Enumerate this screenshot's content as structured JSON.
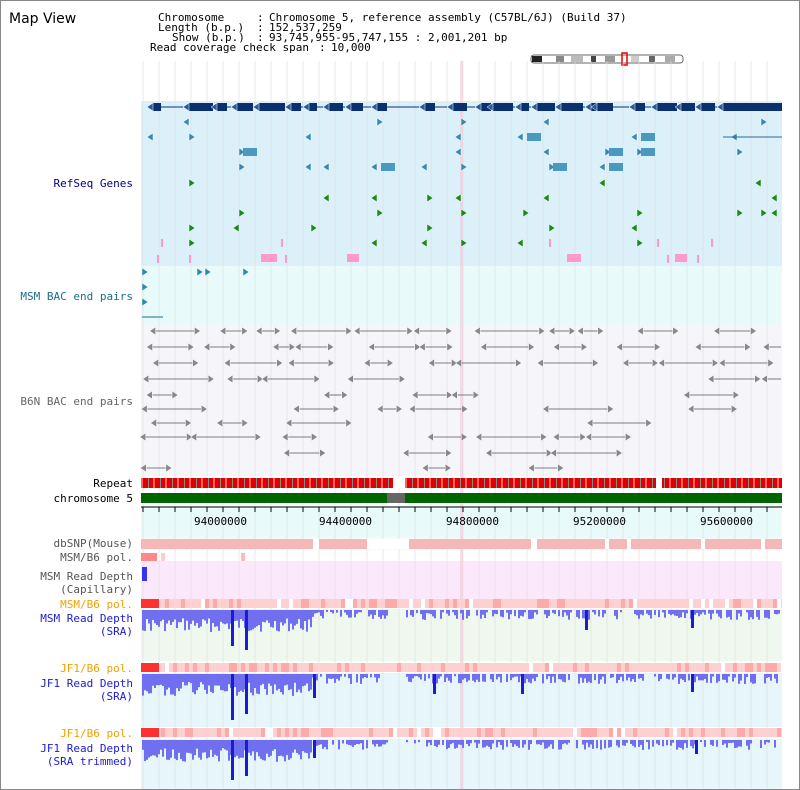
{
  "header": {
    "title": "Map View",
    "chromosome_key": "Chromosome",
    "chromosome_val": "Chromosome 5, reference assembly (C57BL/6J) (Build 37)",
    "length_key": "Length (b.p.)",
    "length_val": "152,537,259",
    "show_key": "Show (b.p.)",
    "show_val": "93,745,955-95,747,155 : 2,001,201 bp",
    "span_key": "Read coverage check span",
    "span_val": "10,000"
  },
  "tracks": {
    "refseq": "RefSeq Genes",
    "msm_bac": "MSM BAC end pairs",
    "b6n_bac": "B6N BAC end pairs",
    "repeat": "Repeat",
    "chromosome": "chromosome 5",
    "dbsnp": "dbSNP(Mouse)",
    "msm_b6_pol_1": "MSM/B6 pol.",
    "msm_depth_cap_1": "MSM Read Depth",
    "msm_depth_cap_2": "(Capillary)",
    "msm_b6_pol_2": "MSM/B6 pol.",
    "msm_depth_sra_1": "MSM Read Depth",
    "msm_depth_sra_2": "(SRA)",
    "jf1_b6_pol_1": "JF1/B6 pol.",
    "jf1_depth_sra_1": "JF1 Read Depth",
    "jf1_depth_sra_2": "(SRA)",
    "jf1_b6_pol_2": "JF1/B6 pol.",
    "jf1_depth_trim_1": "JF1 Read Depth",
    "jf1_depth_trim_2": "(SRA trimmed)"
  },
  "axis": {
    "ticks": [
      "94000000",
      "94400000",
      "94800000",
      "95200000",
      "95600000"
    ]
  },
  "colors": {
    "refseq_bg": "#dcf0fa",
    "msm_bac_bg": "#e8fafa",
    "gene_navy": "#0a3070",
    "gene_green": "#1a8a1a",
    "repeat_red": "#e00000",
    "chrom_green": "#006400",
    "depth_blue": "#3333ee"
  }
}
